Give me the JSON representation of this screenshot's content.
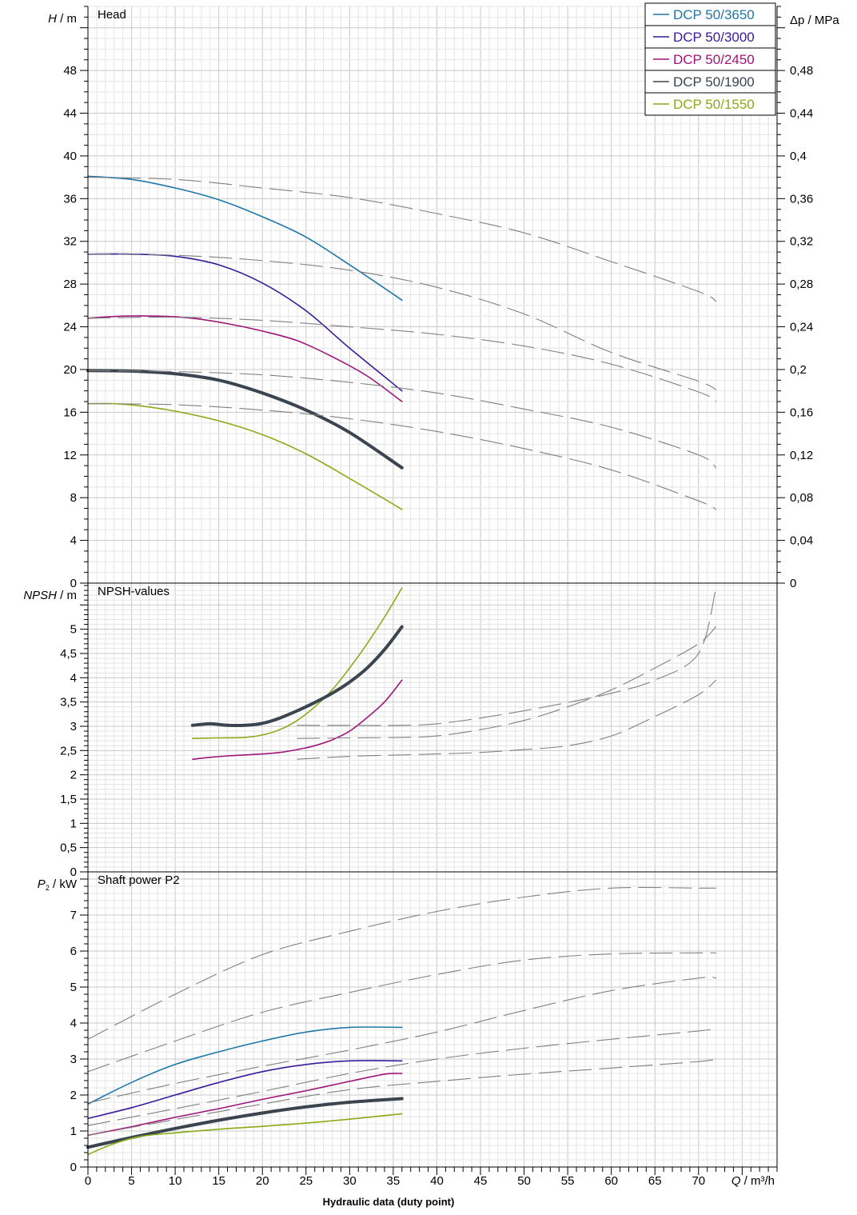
{
  "chart_data": [
    {
      "type": "line",
      "panel": "head",
      "title": "Head",
      "ylabel_symbol": "H",
      "ylabel_unit": " / m",
      "y2label_symbol": "Δp",
      "y2label_unit": " / MPa",
      "ylim": [
        0,
        54
      ],
      "yticks": [
        0,
        4,
        8,
        12,
        16,
        20,
        24,
        28,
        32,
        36,
        40,
        44,
        48
      ],
      "ytick_labels": [
        "0",
        "4",
        "8",
        "12",
        "16",
        "20",
        "24",
        "28",
        "32",
        "36",
        "40",
        "44",
        "48"
      ],
      "y2ticks": [
        0,
        0.04,
        0.08,
        0.12,
        0.16,
        0.2,
        0.24,
        0.28,
        0.32,
        0.36,
        0.4,
        0.44,
        0.48
      ],
      "y2tick_labels": [
        "0",
        "0,04",
        "0,08",
        "0,12",
        "0,16",
        "0,2",
        "0,24",
        "0,28",
        "0,32",
        "0,36",
        "0,4",
        "0,44",
        "0,48"
      ],
      "grid": true,
      "series": [
        {
          "name": "DCP 50/3650",
          "color": "#1f77a8",
          "width": 1.6,
          "dash": false,
          "x": [
            0,
            5,
            10,
            15,
            20,
            25,
            30,
            36
          ],
          "values": [
            38.1,
            37.8,
            37.0,
            35.9,
            34.3,
            32.4,
            29.8,
            26.5
          ]
        },
        {
          "name": "DCP 50/3000",
          "color": "#3a1a9c",
          "width": 1.6,
          "dash": false,
          "x": [
            0,
            5,
            10,
            15,
            20,
            25,
            30,
            36
          ],
          "values": [
            30.8,
            30.8,
            30.6,
            29.8,
            28.1,
            25.5,
            22.0,
            18.0
          ]
        },
        {
          "name": "DCP 50/2450",
          "color": "#a0147a",
          "width": 1.6,
          "dash": false,
          "x": [
            0,
            4,
            8,
            12,
            16,
            20,
            24,
            28,
            32,
            36
          ],
          "values": [
            24.8,
            25.0,
            25.0,
            24.8,
            24.3,
            23.6,
            22.7,
            21.2,
            19.4,
            17.0
          ]
        },
        {
          "name": "DCP 50/1900",
          "color": "#3b4550",
          "width": 4,
          "dash": false,
          "x": [
            0,
            5,
            10,
            15,
            20,
            25,
            30,
            36
          ],
          "values": [
            19.9,
            19.85,
            19.6,
            19.0,
            17.8,
            16.2,
            14.1,
            10.8
          ]
        },
        {
          "name": "DCP 50/1550",
          "color": "#8aaa18",
          "width": 1.6,
          "dash": false,
          "x": [
            0,
            3,
            6,
            10,
            15,
            20,
            25,
            30,
            36
          ],
          "values": [
            16.8,
            16.8,
            16.6,
            16.1,
            15.2,
            13.9,
            12.1,
            9.8,
            6.9
          ]
        },
        {
          "color": "#808080",
          "width": 1.1,
          "dash": true,
          "x": [
            0,
            10,
            20,
            30,
            40,
            50,
            60,
            70,
            72
          ],
          "values": [
            38.0,
            37.8,
            37.0,
            36.1,
            34.6,
            32.8,
            30.1,
            27.3,
            26.4
          ]
        },
        {
          "color": "#808080",
          "width": 1.1,
          "dash": true,
          "x": [
            0,
            10,
            20,
            30,
            40,
            50,
            60,
            70,
            72
          ],
          "values": [
            30.8,
            30.7,
            30.2,
            29.3,
            27.7,
            25.2,
            21.6,
            18.9,
            18.1
          ]
        },
        {
          "color": "#808080",
          "width": 1.1,
          "dash": true,
          "x": [
            0,
            10,
            20,
            30,
            40,
            50,
            60,
            70,
            72
          ],
          "values": [
            24.8,
            24.9,
            24.6,
            24.0,
            23.3,
            22.2,
            20.5,
            17.9,
            17.0
          ]
        },
        {
          "color": "#808080",
          "width": 1.1,
          "dash": true,
          "x": [
            0,
            10,
            20,
            30,
            40,
            50,
            60,
            70,
            72
          ],
          "values": [
            19.9,
            19.8,
            19.5,
            18.8,
            17.8,
            16.3,
            14.6,
            12.0,
            10.8
          ]
        },
        {
          "color": "#808080",
          "width": 1.1,
          "dash": true,
          "x": [
            0,
            10,
            20,
            30,
            40,
            50,
            60,
            70,
            72
          ],
          "values": [
            16.8,
            16.7,
            16.2,
            15.4,
            14.2,
            12.6,
            10.6,
            7.7,
            6.9
          ]
        }
      ]
    },
    {
      "type": "line",
      "panel": "npsh",
      "title": "NPSH-values",
      "ylabel_symbol": "NPSH",
      "ylabel_unit": " / m",
      "ylim": [
        0,
        5.95
      ],
      "yticks": [
        0,
        0.5,
        1,
        1.5,
        2,
        2.5,
        3,
        3.5,
        4,
        4.5,
        5
      ],
      "ytick_labels": [
        "0",
        "0,5",
        "1",
        "1,5",
        "2",
        "2,5",
        "3",
        "3,5",
        "4",
        "4,5",
        "5"
      ],
      "grid": true,
      "series": [
        {
          "color": "#8aaa18",
          "width": 1.6,
          "dash": false,
          "x": [
            12,
            15,
            18,
            20,
            22,
            24,
            26,
            28,
            30,
            32,
            34,
            36
          ],
          "values": [
            2.75,
            2.76,
            2.77,
            2.82,
            2.93,
            3.12,
            3.4,
            3.75,
            4.2,
            4.7,
            5.25,
            5.85
          ]
        },
        {
          "color": "#3b4550",
          "width": 4,
          "dash": false,
          "x": [
            12,
            14,
            16,
            18,
            20,
            22,
            24,
            26,
            28,
            30,
            32,
            34,
            36
          ],
          "values": [
            3.02,
            3.05,
            3.02,
            3.02,
            3.06,
            3.17,
            3.32,
            3.49,
            3.68,
            3.91,
            4.2,
            4.58,
            5.05
          ]
        },
        {
          "color": "#a0147a",
          "width": 1.6,
          "dash": false,
          "x": [
            12,
            14,
            16,
            18,
            20,
            22,
            24,
            26,
            28,
            30,
            32,
            34,
            36
          ],
          "values": [
            2.32,
            2.36,
            2.39,
            2.41,
            2.43,
            2.46,
            2.52,
            2.6,
            2.72,
            2.9,
            3.18,
            3.5,
            3.95
          ]
        },
        {
          "color": "#808080",
          "width": 1.1,
          "dash": true,
          "x": [
            24,
            30,
            36,
            40,
            45,
            50,
            55,
            60,
            65,
            70,
            72
          ],
          "values": [
            2.75,
            2.76,
            2.77,
            2.8,
            2.93,
            3.12,
            3.4,
            3.75,
            4.2,
            4.7,
            5.05
          ]
        },
        {
          "color": "#808080",
          "width": 1.1,
          "dash": true,
          "x": [
            24,
            30,
            36,
            40,
            45,
            50,
            55,
            60,
            65,
            70,
            72
          ],
          "values": [
            3.02,
            3.02,
            3.02,
            3.05,
            3.17,
            3.32,
            3.49,
            3.68,
            3.95,
            4.5,
            5.85
          ]
        },
        {
          "color": "#808080",
          "width": 1.1,
          "dash": true,
          "x": [
            24,
            30,
            36,
            40,
            45,
            50,
            55,
            60,
            65,
            70,
            72
          ],
          "values": [
            2.32,
            2.38,
            2.41,
            2.43,
            2.46,
            2.52,
            2.6,
            2.8,
            3.2,
            3.65,
            3.95
          ]
        }
      ]
    },
    {
      "type": "line",
      "panel": "power",
      "title": "Shaft power P2",
      "ylabel_symbol": "P",
      "ylabel_sub": "2",
      "ylabel_unit": " / kW",
      "xlabel_symbol": "Q",
      "xlabel_unit": " / m³/h",
      "footer": "Hydraulic data (duty point)",
      "xlim": [
        0,
        79
      ],
      "xticks": [
        0,
        5,
        10,
        15,
        20,
        25,
        30,
        35,
        40,
        45,
        50,
        55,
        60,
        65,
        70
      ],
      "xtick_labels": [
        "0",
        "5",
        "10",
        "15",
        "20",
        "25",
        "30",
        "35",
        "40",
        "45",
        "50",
        "55",
        "60",
        "65",
        "70"
      ],
      "ylim": [
        0,
        8.2
      ],
      "yticks": [
        0,
        1,
        2,
        3,
        4,
        5,
        6,
        7
      ],
      "ytick_labels": [
        "0",
        "1",
        "2",
        "3",
        "4",
        "5",
        "6",
        "7"
      ],
      "grid": true,
      "series": [
        {
          "color": "#1f77a8",
          "width": 1.6,
          "dash": false,
          "x": [
            0,
            5,
            10,
            15,
            20,
            25,
            30,
            36
          ],
          "values": [
            1.75,
            2.35,
            2.85,
            3.2,
            3.5,
            3.75,
            3.88,
            3.88
          ]
        },
        {
          "color": "#3a1a9c",
          "width": 1.6,
          "dash": false,
          "x": [
            0,
            5,
            10,
            15,
            20,
            25,
            30,
            36
          ],
          "values": [
            1.35,
            1.65,
            2.0,
            2.35,
            2.65,
            2.85,
            2.95,
            2.95
          ]
        },
        {
          "color": "#a0147a",
          "width": 1.6,
          "dash": false,
          "x": [
            0,
            5,
            10,
            15,
            20,
            25,
            30,
            34,
            36
          ],
          "values": [
            0.88,
            1.12,
            1.38,
            1.62,
            1.88,
            2.12,
            2.38,
            2.58,
            2.6
          ]
        },
        {
          "color": "#3b4550",
          "width": 4,
          "dash": false,
          "x": [
            0,
            5,
            10,
            15,
            20,
            25,
            30,
            36
          ],
          "values": [
            0.55,
            0.82,
            1.07,
            1.3,
            1.5,
            1.67,
            1.8,
            1.9
          ]
        },
        {
          "color": "#8aaa18",
          "width": 1.6,
          "dash": false,
          "x": [
            0,
            3,
            6,
            10,
            15,
            20,
            25,
            30,
            36
          ],
          "values": [
            0.35,
            0.65,
            0.85,
            0.95,
            1.05,
            1.13,
            1.22,
            1.33,
            1.48
          ]
        },
        {
          "color": "#808080",
          "width": 1.1,
          "dash": true,
          "x": [
            0,
            10,
            20,
            30,
            40,
            50,
            60,
            70,
            72
          ],
          "values": [
            3.55,
            4.8,
            5.9,
            6.55,
            7.1,
            7.5,
            7.75,
            7.75,
            7.75
          ]
        },
        {
          "color": "#808080",
          "width": 1.1,
          "dash": true,
          "x": [
            0,
            10,
            20,
            30,
            40,
            50,
            60,
            70,
            72
          ],
          "values": [
            2.65,
            3.5,
            4.3,
            4.85,
            5.35,
            5.75,
            5.92,
            5.95,
            5.95
          ]
        },
        {
          "color": "#808080",
          "width": 1.1,
          "dash": true,
          "x": [
            0,
            10,
            20,
            30,
            40,
            50,
            60,
            70,
            72
          ],
          "values": [
            1.78,
            2.32,
            2.8,
            3.25,
            3.75,
            4.35,
            4.9,
            5.25,
            5.25
          ]
        },
        {
          "color": "#808080",
          "width": 1.1,
          "dash": true,
          "x": [
            0,
            10,
            20,
            30,
            40,
            50,
            60,
            70,
            72
          ],
          "values": [
            1.15,
            1.62,
            2.1,
            2.6,
            3.0,
            3.3,
            3.55,
            3.78,
            3.85
          ]
        },
        {
          "color": "#808080",
          "width": 1.1,
          "dash": true,
          "x": [
            0,
            10,
            20,
            30,
            40,
            50,
            60,
            70,
            72
          ],
          "values": [
            0.88,
            1.32,
            1.75,
            2.15,
            2.38,
            2.58,
            2.75,
            2.93,
            3.0
          ]
        }
      ]
    }
  ],
  "legend": {
    "placement": "top-right",
    "entries": [
      {
        "label": "DCP 50/3650",
        "color": "#1f77a8"
      },
      {
        "label": "DCP 50/3000",
        "color": "#3a1a9c"
      },
      {
        "label": "DCP 50/2450",
        "color": "#a0147a"
      },
      {
        "label": "DCP 50/1900",
        "color": "#3b4550"
      },
      {
        "label": "DCP 50/1550",
        "color": "#8aaa18"
      }
    ]
  }
}
